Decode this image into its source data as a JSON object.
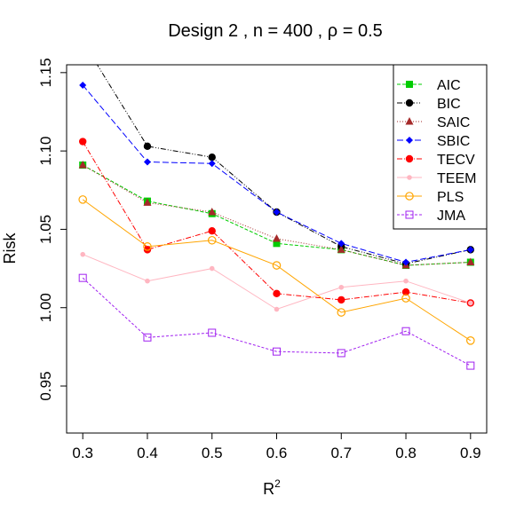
{
  "chart_data": {
    "type": "line",
    "title": "Design 2 , n = 400 ,  ρ = 0.5",
    "xlabel": "R",
    "xlabel_sup": "2",
    "ylabel": "Risk",
    "x": [
      0.3,
      0.4,
      0.5,
      0.6,
      0.7,
      0.8,
      0.9
    ],
    "xlim": [
      0.275,
      0.925
    ],
    "ylim": [
      0.92,
      1.155
    ],
    "x_ticks": [
      0.3,
      0.4,
      0.5,
      0.6,
      0.7,
      0.8,
      0.9
    ],
    "x_tick_labels": [
      "0.3",
      "0.4",
      "0.5",
      "0.6",
      "0.7",
      "0.8",
      "0.9"
    ],
    "y_ticks": [
      0.95,
      1.0,
      1.05,
      1.1,
      1.15
    ],
    "y_tick_labels": [
      "0.95",
      "1.00",
      "1.05",
      "1.10",
      "1.15"
    ],
    "grid": false,
    "legend_position": "top-right",
    "series": [
      {
        "name": "AIC",
        "values": [
          1.091,
          1.068,
          1.06,
          1.041,
          1.037,
          1.027,
          1.029
        ],
        "color": "#00cc00",
        "dash": "4,2",
        "marker": "square-filled"
      },
      {
        "name": "BIC",
        "values": [
          1.17,
          1.103,
          1.096,
          1.061,
          1.039,
          1.028,
          1.037
        ],
        "color": "#000000",
        "dash": "6,2,1,2,1,2",
        "marker": "circle-filled"
      },
      {
        "name": "SAIC",
        "values": [
          1.091,
          1.067,
          1.061,
          1.044,
          1.037,
          1.027,
          1.029
        ],
        "color": "#a52a2a",
        "dash": "1,2",
        "marker": "triangle-filled"
      },
      {
        "name": "SBIC",
        "values": [
          1.142,
          1.093,
          1.092,
          1.061,
          1.041,
          1.029,
          1.037
        ],
        "color": "#0000ff",
        "dash": "7,3",
        "marker": "diamond-filled"
      },
      {
        "name": "TECV",
        "values": [
          1.106,
          1.037,
          1.049,
          1.009,
          1.005,
          1.01,
          1.003
        ],
        "color": "#ff0000",
        "dash": "6,2,1,2",
        "marker": "circle-filled"
      },
      {
        "name": "TEEM",
        "values": [
          1.034,
          1.017,
          1.025,
          0.999,
          1.013,
          1.017,
          1.003
        ],
        "color": "#ffb6c1",
        "dash": "",
        "marker": "dot-filled"
      },
      {
        "name": "PLS",
        "values": [
          1.069,
          1.039,
          1.043,
          1.027,
          0.997,
          1.006,
          0.979
        ],
        "color": "#ffa500",
        "dash": "",
        "marker": "circle-open"
      },
      {
        "name": "JMA",
        "values": [
          1.019,
          0.981,
          0.984,
          0.972,
          0.971,
          0.985,
          0.963
        ],
        "color": "#a020f0",
        "dash": "3,2",
        "marker": "square-open"
      }
    ]
  }
}
